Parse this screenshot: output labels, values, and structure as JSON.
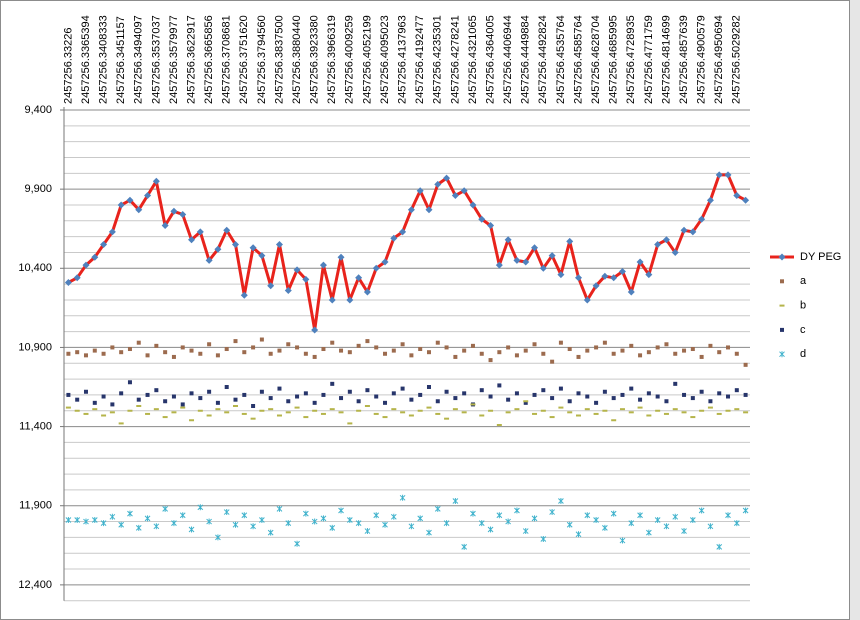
{
  "chart_data": {
    "type": "line",
    "categories": [
      "2457256.33226",
      null,
      "2457256.3365394",
      null,
      "2457256.3408333",
      null,
      "2457256.3451157",
      null,
      "2457256.3494097",
      null,
      "2457256.3537037",
      null,
      "2457256.3579977",
      null,
      "2457256.3622917",
      null,
      "2457256.3665856",
      null,
      "2457256.3708681",
      null,
      "2457256.3751620",
      null,
      "2457256.3794560",
      null,
      "2457256.3837500",
      null,
      "2457256.3880440",
      null,
      "2457256.3923380",
      null,
      "2457256.3966319",
      null,
      "2457256.4009259",
      null,
      "2457256.4052199",
      null,
      "2457256.4095023",
      null,
      "2457256.4137963",
      null,
      "2457256.4192477",
      null,
      "2457256.4235301",
      null,
      "2457256.4278241",
      null,
      "2457256.4321065",
      null,
      "2457256.4364005",
      null,
      "2457256.4406944",
      null,
      "2457256.4449884",
      null,
      "2457256.4492824",
      null,
      "2457256.4535764",
      null,
      "2457256.4585764",
      null,
      "2457256.4628704",
      null,
      "2457256.4685995",
      null,
      "2457256.4728935",
      null,
      "2457256.4771759",
      null,
      "2457256.4814699",
      null,
      "2457256.4857639",
      null,
      "2457256.4900579",
      null,
      "2457256.4950694",
      null,
      "2457256.5029282",
      null
    ],
    "series": [
      {
        "name": "DY PEG",
        "color": "#e8231c",
        "marker_color": "#4f81bd",
        "marker": "diamond",
        "line": true,
        "values": [
          10490,
          10460,
          10380,
          10330,
          10250,
          10170,
          10000,
          9970,
          10030,
          9940,
          9850,
          10130,
          10040,
          10060,
          10220,
          10170,
          10350,
          10280,
          10160,
          10250,
          10570,
          10270,
          10320,
          10510,
          10250,
          10540,
          10410,
          10470,
          10790,
          10380,
          10600,
          10330,
          10600,
          10460,
          10550,
          10400,
          10360,
          10210,
          10170,
          10030,
          9910,
          10030,
          9870,
          9830,
          9940,
          9910,
          10000,
          10090,
          10130,
          10380,
          10220,
          10350,
          10360,
          10270,
          10400,
          10320,
          10440,
          10230,
          10460,
          10600,
          10510,
          10450,
          10460,
          10420,
          10550,
          10360,
          10440,
          10250,
          10220,
          10300,
          10160,
          10170,
          10090,
          9970,
          9810,
          9810,
          9940,
          9970
        ]
      },
      {
        "name": "a",
        "color": "#9c6b4e",
        "marker": "square",
        "line": false,
        "values": [
          10940,
          10930,
          10950,
          10920,
          10940,
          10900,
          10930,
          10910,
          10870,
          10950,
          10890,
          10930,
          10960,
          10900,
          10920,
          10940,
          10880,
          10950,
          10910,
          10860,
          10930,
          10900,
          10850,
          10940,
          10920,
          10880,
          10900,
          10940,
          10960,
          10910,
          10870,
          10920,
          10930,
          10890,
          10860,
          10900,
          10940,
          10920,
          10880,
          10950,
          10910,
          10930,
          10870,
          10900,
          10960,
          10920,
          10890,
          10940,
          10980,
          10930,
          10900,
          10950,
          10920,
          10880,
          10940,
          10990,
          10870,
          10910,
          10960,
          10920,
          10900,
          10870,
          10940,
          10920,
          10890,
          10950,
          10930,
          10900,
          10880,
          10940,
          10920,
          10910,
          10960,
          10890,
          10930,
          10900,
          10940,
          11010
        ]
      },
      {
        "name": "b",
        "color": "#b5b44a",
        "marker": "dash",
        "line": false,
        "values": [
          11280,
          11300,
          11320,
          11290,
          11330,
          11310,
          11380,
          11300,
          11270,
          11320,
          11290,
          11340,
          11310,
          11280,
          11360,
          11300,
          11330,
          11290,
          11310,
          11270,
          11320,
          11350,
          11300,
          11290,
          11330,
          11310,
          11280,
          11340,
          11300,
          11320,
          11290,
          11310,
          11380,
          11300,
          11270,
          11320,
          11340,
          11290,
          11310,
          11330,
          11300,
          11280,
          11320,
          11350,
          11290,
          11310,
          11260,
          11330,
          11300,
          11390,
          11310,
          11290,
          11240,
          11320,
          11300,
          11340,
          11280,
          11310,
          11330,
          11290,
          11320,
          11300,
          11360,
          11290,
          11310,
          11280,
          11330,
          11300,
          11320,
          11290,
          11310,
          11340,
          11300,
          11280,
          11320,
          11300,
          11290,
          11310
        ]
      },
      {
        "name": "c",
        "color": "#27356b",
        "marker": "square",
        "line": false,
        "values": [
          11200,
          11230,
          11180,
          11250,
          11210,
          11260,
          11190,
          11120,
          11230,
          11200,
          11170,
          11240,
          11210,
          11260,
          11190,
          11220,
          11180,
          11250,
          11150,
          11230,
          11200,
          11270,
          11180,
          11220,
          11160,
          11240,
          11210,
          11190,
          11250,
          11200,
          11130,
          11220,
          11180,
          11240,
          11170,
          11210,
          11250,
          11190,
          11160,
          11230,
          11200,
          11150,
          11240,
          11180,
          11220,
          11190,
          11260,
          11170,
          11210,
          11140,
          11230,
          11190,
          11250,
          11200,
          11170,
          11220,
          11160,
          11240,
          11190,
          11210,
          11250,
          11180,
          11220,
          11200,
          11160,
          11230,
          11190,
          11210,
          11240,
          11130,
          11200,
          11220,
          11180,
          11240,
          11190,
          11210,
          11170,
          11200
        ]
      },
      {
        "name": "d",
        "color": "#3fb2cc",
        "marker": "asterisk",
        "line": false,
        "values": [
          11990,
          11990,
          12000,
          11990,
          12010,
          11970,
          12020,
          11950,
          12040,
          11980,
          12030,
          11920,
          12010,
          11960,
          12050,
          11910,
          12000,
          12100,
          11940,
          12020,
          11960,
          12030,
          11990,
          12070,
          11920,
          12010,
          12140,
          11950,
          12000,
          11980,
          12040,
          11930,
          11990,
          12010,
          12060,
          11960,
          12020,
          11970,
          11850,
          12030,
          11980,
          12070,
          11920,
          12010,
          11870,
          12160,
          11950,
          12010,
          12050,
          11960,
          12000,
          11930,
          12060,
          11980,
          12110,
          11940,
          11870,
          12020,
          12080,
          11960,
          11990,
          12040,
          11950,
          12120,
          12010,
          11960,
          12070,
          11990,
          12030,
          11970,
          12060,
          11990,
          11930,
          12030,
          12160,
          11960,
          12010,
          11930
        ]
      }
    ],
    "ylim": [
      9400,
      12500
    ],
    "y_reversed": true,
    "yticks": [
      {
        "value": 9400,
        "label": "9,400"
      },
      {
        "value": 9900,
        "label": "9,900"
      },
      {
        "value": 10400,
        "label": "10,400"
      },
      {
        "value": 10900,
        "label": "10,900"
      },
      {
        "value": 11400,
        "label": "11,400"
      },
      {
        "value": 11900,
        "label": "11,900"
      },
      {
        "value": 12400,
        "label": "12,400"
      }
    ],
    "minor_yticks": [
      9500,
      9600,
      9700,
      9800,
      10000,
      10100,
      10200,
      10300,
      10500,
      10600,
      10700,
      10800,
      11000,
      11100,
      11200,
      11300,
      11500,
      11600,
      11700,
      11800,
      12000,
      12100,
      12200,
      12300,
      12500
    ],
    "grid": true,
    "legend": "right"
  }
}
